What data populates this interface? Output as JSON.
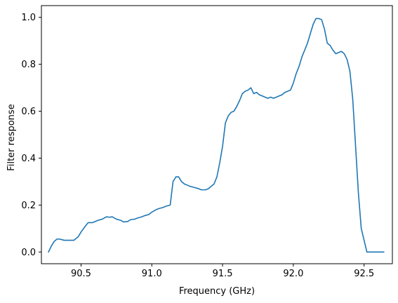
{
  "chart_data": {
    "type": "line",
    "title": "",
    "xlabel": "Frequency (GHz)",
    "ylabel": "Filter response",
    "xlim": [
      90.22,
      92.7
    ],
    "ylim": [
      -0.05,
      1.05
    ],
    "grid": false,
    "legend": false,
    "x_ticks": [
      90.5,
      91.0,
      91.5,
      92.0,
      92.5
    ],
    "x_tick_labels": [
      "90.5",
      "91.0",
      "91.5",
      "92.0",
      "92.5"
    ],
    "y_ticks": [
      0.0,
      0.2,
      0.4,
      0.6,
      0.8,
      1.0
    ],
    "y_tick_labels": [
      "0.0",
      "0.2",
      "0.4",
      "0.6",
      "0.8",
      "1.0"
    ],
    "series": [
      {
        "color": "#1f77b4",
        "x": [
          90.27,
          90.29,
          90.31,
          90.33,
          90.35,
          90.38,
          90.41,
          90.45,
          90.48,
          90.5,
          90.53,
          90.55,
          90.58,
          90.62,
          90.65,
          90.68,
          90.7,
          90.72,
          90.75,
          90.78,
          90.8,
          90.83,
          90.85,
          90.88,
          90.9,
          90.93,
          90.95,
          90.98,
          91.0,
          91.03,
          91.05,
          91.08,
          91.1,
          91.13,
          91.15,
          91.17,
          91.19,
          91.21,
          91.23,
          91.25,
          91.27,
          91.3,
          91.33,
          91.35,
          91.38,
          91.4,
          91.42,
          91.44,
          91.46,
          91.48,
          91.5,
          91.52,
          91.54,
          91.56,
          91.58,
          91.6,
          91.62,
          91.64,
          91.66,
          91.68,
          91.7,
          91.72,
          91.74,
          91.76,
          91.78,
          91.8,
          91.82,
          91.84,
          91.86,
          91.88,
          91.9,
          91.92,
          91.94,
          91.96,
          91.98,
          92.0,
          92.02,
          92.04,
          92.06,
          92.08,
          92.1,
          92.12,
          92.14,
          92.16,
          92.18,
          92.2,
          92.22,
          92.24,
          92.26,
          92.28,
          92.3,
          92.32,
          92.34,
          92.36,
          92.38,
          92.4,
          92.42,
          92.44,
          92.46,
          92.48,
          92.5,
          92.52,
          92.54,
          92.56,
          92.58,
          92.6,
          92.62,
          92.64
        ],
        "y": [
          0.0,
          0.025,
          0.045,
          0.055,
          0.055,
          0.05,
          0.05,
          0.05,
          0.065,
          0.085,
          0.11,
          0.125,
          0.125,
          0.135,
          0.14,
          0.15,
          0.148,
          0.15,
          0.14,
          0.135,
          0.128,
          0.13,
          0.138,
          0.14,
          0.145,
          0.15,
          0.155,
          0.16,
          0.17,
          0.18,
          0.185,
          0.19,
          0.195,
          0.2,
          0.3,
          0.32,
          0.32,
          0.3,
          0.29,
          0.285,
          0.28,
          0.275,
          0.27,
          0.265,
          0.265,
          0.27,
          0.28,
          0.29,
          0.32,
          0.38,
          0.45,
          0.55,
          0.58,
          0.595,
          0.6,
          0.62,
          0.645,
          0.675,
          0.685,
          0.69,
          0.7,
          0.675,
          0.68,
          0.67,
          0.665,
          0.66,
          0.655,
          0.66,
          0.655,
          0.66,
          0.665,
          0.67,
          0.68,
          0.685,
          0.69,
          0.72,
          0.76,
          0.79,
          0.83,
          0.86,
          0.89,
          0.93,
          0.97,
          0.995,
          0.995,
          0.99,
          0.95,
          0.89,
          0.88,
          0.86,
          0.845,
          0.85,
          0.855,
          0.845,
          0.82,
          0.77,
          0.65,
          0.45,
          0.25,
          0.1,
          0.05,
          0.0,
          0.0,
          0.0,
          0.0,
          0.0,
          0.0,
          0.0
        ]
      }
    ]
  }
}
